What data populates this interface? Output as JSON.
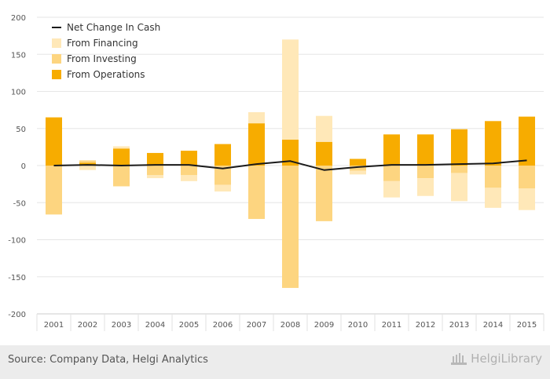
{
  "chart_data": {
    "type": "bar",
    "title": "",
    "xlabel": "",
    "ylabel": "",
    "ylim": [
      -200,
      200
    ],
    "yticks": [
      -200,
      -150,
      -100,
      -50,
      0,
      50,
      100,
      150,
      200
    ],
    "grid": true,
    "legend_position": "top-left",
    "categories": [
      "2001",
      "2002",
      "2003",
      "2004",
      "2005",
      "2006",
      "2007",
      "2008",
      "2009",
      "2010",
      "2011",
      "2012",
      "2013",
      "2014",
      "2015"
    ],
    "series": [
      {
        "name": "Net Change In Cash",
        "kind": "line",
        "color": "#1a1a1a",
        "values": [
          0,
          1,
          0,
          1,
          1,
          -4,
          2,
          6,
          -6,
          -2,
          1,
          1,
          2,
          3,
          7
        ]
      },
      {
        "name": "From Financing",
        "kind": "bar",
        "color": "#ffe8b8",
        "values": [
          0,
          -6,
          3,
          -4,
          -8,
          -9,
          15,
          135,
          35,
          -5,
          -22,
          -24,
          -38,
          -27,
          -29
        ]
      },
      {
        "name": "From Investing",
        "kind": "bar",
        "color": "#fdd580",
        "values": [
          -66,
          3,
          -28,
          -13,
          -13,
          -26,
          -72,
          -165,
          -75,
          -7,
          -21,
          -17,
          -10,
          -30,
          -31
        ]
      },
      {
        "name": "From Operations",
        "kind": "bar",
        "color": "#f7ac00",
        "values": [
          65,
          4,
          23,
          17,
          20,
          29,
          57,
          35,
          32,
          9,
          42,
          42,
          49,
          60,
          66
        ]
      }
    ]
  },
  "footer": {
    "source": "Source: Company Data, Helgi Analytics",
    "logo_text": "HelgiLibrary"
  }
}
